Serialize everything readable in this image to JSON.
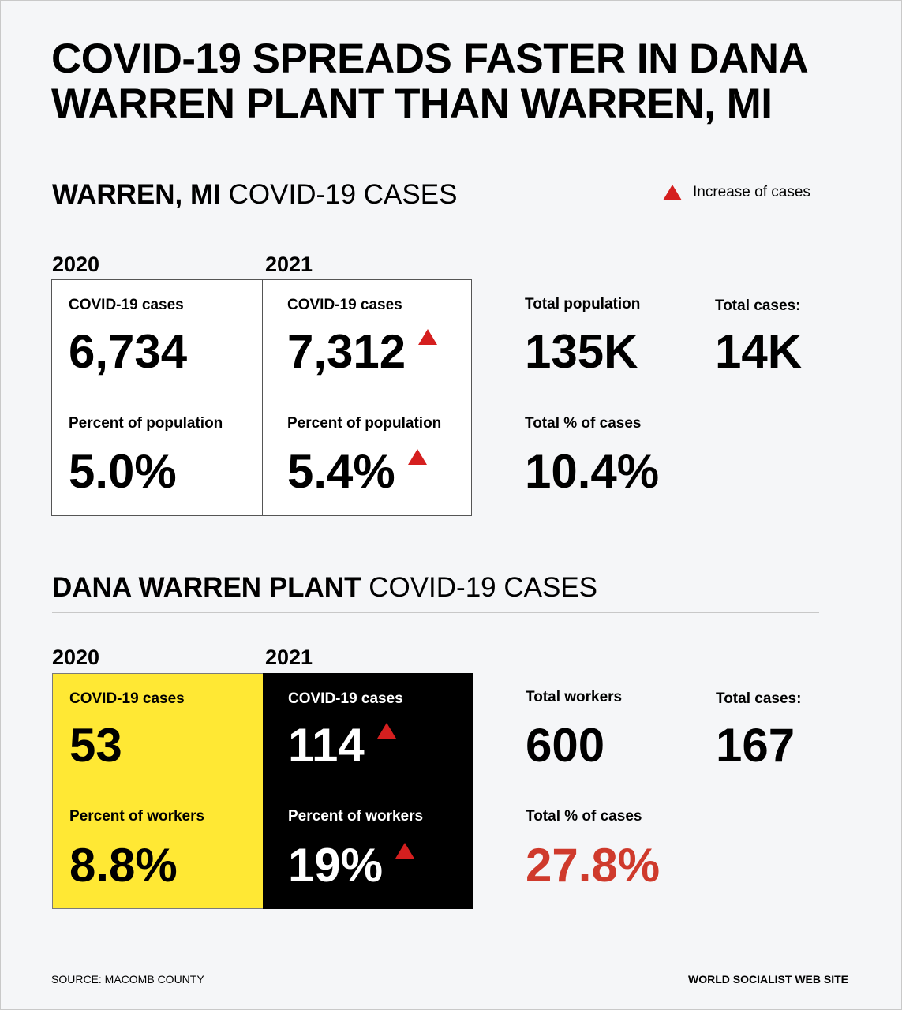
{
  "title": "COVID-19 SPREADS FASTER IN DANA WARREN PLANT THAN WARREN, MI",
  "legend": {
    "label": "Increase of cases",
    "color": "#d51f1f"
  },
  "warren": {
    "heading_bold": "WARREN, MI",
    "heading_light": "COVID-19 CASES",
    "year_2020": "2020",
    "year_2021": "2021",
    "y2020": {
      "cases_label": "COVID-19 cases",
      "cases": "6,734",
      "pct_label": "Percent of population",
      "pct": "5.0%"
    },
    "y2021": {
      "cases_label": "COVID-19 cases",
      "cases": "7,312",
      "pct_label": "Percent of population",
      "pct": "5.4%"
    },
    "total_population_label": "Total population",
    "total_population": "135K",
    "total_cases_label": "Total cases:",
    "total_cases": "14K",
    "total_pct_label": "Total % of cases",
    "total_pct": "10.4%"
  },
  "dana": {
    "heading_bold": "DANA WARREN PLANT",
    "heading_light": "COVID-19 CASES",
    "year_2020": "2020",
    "year_2021": "2021",
    "y2020": {
      "cases_label": "COVID-19 cases",
      "cases": "53",
      "pct_label": "Percent of workers",
      "pct": "8.8%"
    },
    "y2021": {
      "cases_label": "COVID-19 cases",
      "cases": "114",
      "pct_label": "Percent of workers",
      "pct": "19%"
    },
    "total_workers_label": "Total workers",
    "total_workers": "600",
    "total_cases_label": "Total cases:",
    "total_cases": "167",
    "total_pct_label": "Total % of cases",
    "total_pct": "27.8%"
  },
  "colors": {
    "yellow_box": "#ffe834",
    "black_box": "#000000",
    "highlight_red": "#cf3a2c"
  },
  "footer": {
    "source": "SOURCE: MACOMB COUNTY",
    "publisher": "WORLD SOCIALIST WEB SITE"
  }
}
